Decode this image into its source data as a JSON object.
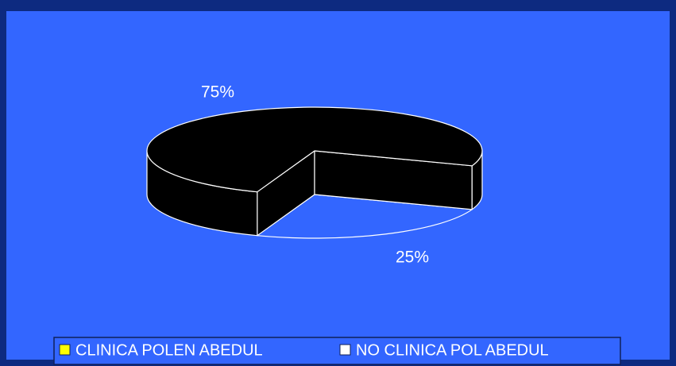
{
  "chart_data": {
    "type": "pie3d",
    "categories": [
      "CLINICA POLEN ABEDUL",
      "NO CLINICA POL ABEDUL"
    ],
    "values": [
      75,
      25
    ],
    "value_labels": [
      "75%",
      "25%"
    ],
    "slice_colors": [
      "#000000",
      "#3366ff"
    ],
    "legend_colors": [
      "#ffff00",
      "#ffffff"
    ],
    "legend": "bottom"
  }
}
